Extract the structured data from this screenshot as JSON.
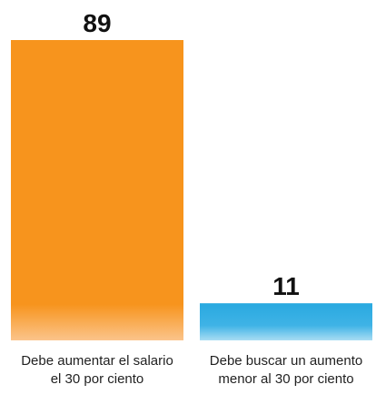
{
  "chart_data": {
    "type": "bar",
    "categories": [
      [
        "Debe aumentar el salario",
        "el 30 por ciento"
      ],
      [
        "Debe buscar un aumento",
        "menor al 30 por ciento"
      ]
    ],
    "values": [
      89,
      11
    ],
    "data_labels": [
      "89",
      "11"
    ],
    "colors": [
      "#F7941D",
      "#29A9E0"
    ],
    "ylim": [
      0,
      89
    ],
    "legend": "none",
    "grid": false
  }
}
